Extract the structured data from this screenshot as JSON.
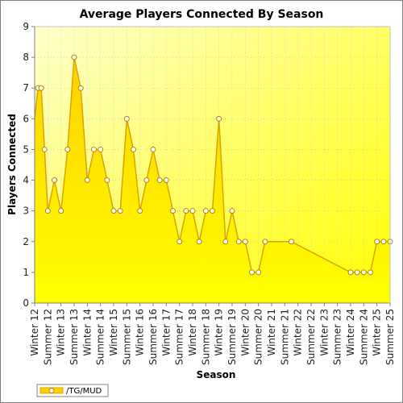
{
  "colors": {
    "background": "#ffffff",
    "plot_gradient_start": "#ffffcc",
    "plot_gradient_end": "#ffff00",
    "area_top": "#ffd000",
    "area_bottom": "#ffff00",
    "line": "#d9a400",
    "marker_fill": "#ffffff",
    "marker_stroke": "#b08800",
    "grid": "#c8c8c8",
    "border": "#808080"
  },
  "chart_data": {
    "type": "area",
    "title": "Average Players Connected By Season",
    "xlabel": "Season",
    "ylabel": "Players Connected",
    "ylim": [
      0,
      9
    ],
    "yticks": [
      0,
      1,
      2,
      3,
      4,
      5,
      6,
      7,
      8,
      9
    ],
    "grid": true,
    "legend_position": "bottom-left",
    "categories": [
      "Winter 12",
      "Summer 12",
      "Winter 13",
      "Summer 13",
      "Winter 14",
      "Summer 14",
      "Winter 15",
      "Summer 15",
      "Winter 16",
      "Summer 16",
      "Winter 17",
      "Summer 17",
      "Winter 18",
      "Summer 18",
      "Winter 19",
      "Summer 19",
      "Winter 20",
      "Summer 20",
      "Winter 21",
      "Summer 21",
      "Winter 22",
      "Summer 22",
      "Winter 23",
      "Summer 23",
      "Winter 24",
      "Summer 24",
      "Winter 25",
      "Summer 25"
    ],
    "series": [
      {
        "name": "/TG/MUD",
        "points": [
          {
            "x": 0.0,
            "y": 6
          },
          {
            "x": 0.25,
            "y": 7
          },
          {
            "x": 0.5,
            "y": 7
          },
          {
            "x": 0.75,
            "y": 5
          },
          {
            "x": 1.0,
            "y": 3
          },
          {
            "x": 1.5,
            "y": 4
          },
          {
            "x": 2.0,
            "y": 3
          },
          {
            "x": 2.5,
            "y": 5
          },
          {
            "x": 3.0,
            "y": 8
          },
          {
            "x": 3.5,
            "y": 7
          },
          {
            "x": 4.0,
            "y": 4
          },
          {
            "x": 4.5,
            "y": 5
          },
          {
            "x": 5.0,
            "y": 5
          },
          {
            "x": 5.5,
            "y": 4
          },
          {
            "x": 6.0,
            "y": 3
          },
          {
            "x": 6.5,
            "y": 3
          },
          {
            "x": 7.0,
            "y": 6
          },
          {
            "x": 7.5,
            "y": 5
          },
          {
            "x": 8.0,
            "y": 3
          },
          {
            "x": 8.5,
            "y": 4
          },
          {
            "x": 9.0,
            "y": 5
          },
          {
            "x": 9.5,
            "y": 4
          },
          {
            "x": 10.0,
            "y": 4
          },
          {
            "x": 10.5,
            "y": 3
          },
          {
            "x": 11.0,
            "y": 2
          },
          {
            "x": 11.5,
            "y": 3
          },
          {
            "x": 12.0,
            "y": 3
          },
          {
            "x": 12.5,
            "y": 2
          },
          {
            "x": 13.0,
            "y": 3
          },
          {
            "x": 13.5,
            "y": 3
          },
          {
            "x": 14.0,
            "y": 6
          },
          {
            "x": 14.5,
            "y": 2
          },
          {
            "x": 15.0,
            "y": 3
          },
          {
            "x": 15.5,
            "y": 2
          },
          {
            "x": 16.0,
            "y": 2
          },
          {
            "x": 16.5,
            "y": 1
          },
          {
            "x": 17.0,
            "y": 1
          },
          {
            "x": 17.5,
            "y": 2
          },
          {
            "x": 19.5,
            "y": 2
          },
          {
            "x": 24.0,
            "y": 1
          },
          {
            "x": 24.5,
            "y": 1
          },
          {
            "x": 25.0,
            "y": 1
          },
          {
            "x": 25.5,
            "y": 1
          },
          {
            "x": 26.0,
            "y": 2
          },
          {
            "x": 26.5,
            "y": 2
          },
          {
            "x": 27.0,
            "y": 2
          }
        ]
      }
    ]
  }
}
